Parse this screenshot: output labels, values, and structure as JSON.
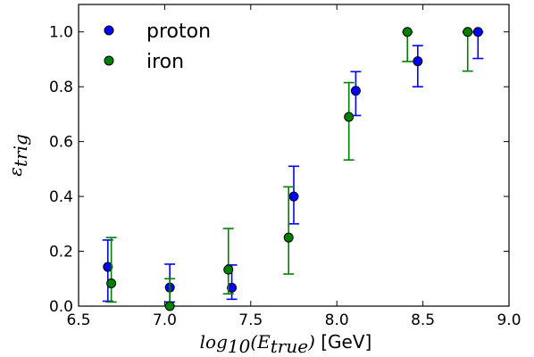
{
  "chart_data": {
    "type": "scatter",
    "title": "",
    "xlabel": "log10(Etrue)",
    "xlabel_parts": {
      "lead": "log",
      "sub": "10",
      "open": "(E",
      "sub2": "true",
      "close": ")",
      "unit": " [GeV]"
    },
    "ylabel": "εtrig",
    "ylabel_parts": {
      "main": "ε",
      "sub": "trig"
    },
    "xlim": [
      6.5,
      9.0
    ],
    "ylim": [
      0.0,
      1.1
    ],
    "x_ticks": [
      6.5,
      7.0,
      7.5,
      8.0,
      8.5,
      9.0
    ],
    "x_tick_labels": [
      "6.5",
      "7.0",
      "7.5",
      "8.0",
      "8.5",
      "9.0"
    ],
    "y_ticks": [
      0.0,
      0.2,
      0.4,
      0.6,
      0.8,
      1.0
    ],
    "y_tick_labels": [
      "0.0",
      "0.2",
      "0.4",
      "0.6",
      "0.8",
      "1.0"
    ],
    "grid": false,
    "legend_placement": "top-left",
    "series": [
      {
        "name": "proton",
        "color": "#0000ff",
        "points": [
          {
            "x": 6.67,
            "y": 0.143,
            "err_low": 0.125,
            "err_high": 0.098
          },
          {
            "x": 7.03,
            "y": 0.068,
            "err_low": 0.053,
            "err_high": 0.085
          },
          {
            "x": 7.39,
            "y": 0.067,
            "err_low": 0.042,
            "err_high": 0.083
          },
          {
            "x": 7.75,
            "y": 0.4,
            "err_low": 0.1,
            "err_high": 0.11
          },
          {
            "x": 8.11,
            "y": 0.785,
            "err_low": 0.09,
            "err_high": 0.07
          },
          {
            "x": 8.47,
            "y": 0.893,
            "err_low": 0.093,
            "err_high": 0.057
          },
          {
            "x": 8.82,
            "y": 1.0,
            "err_low": 0.097,
            "err_high": 0.0
          }
        ]
      },
      {
        "name": "iron",
        "color": "#008000",
        "points": [
          {
            "x": 6.69,
            "y": 0.083,
            "err_low": 0.068,
            "err_high": 0.167
          },
          {
            "x": 7.03,
            "y": 0.0,
            "err_low": 0.0,
            "err_high": 0.1
          },
          {
            "x": 7.37,
            "y": 0.133,
            "err_low": 0.088,
            "err_high": 0.15
          },
          {
            "x": 7.72,
            "y": 0.25,
            "err_low": 0.133,
            "err_high": 0.185
          },
          {
            "x": 8.07,
            "y": 0.69,
            "err_low": 0.157,
            "err_high": 0.125
          },
          {
            "x": 8.41,
            "y": 1.0,
            "err_low": 0.108,
            "err_high": 0.0
          },
          {
            "x": 8.76,
            "y": 1.0,
            "err_low": 0.143,
            "err_high": 0.0
          }
        ]
      }
    ]
  }
}
